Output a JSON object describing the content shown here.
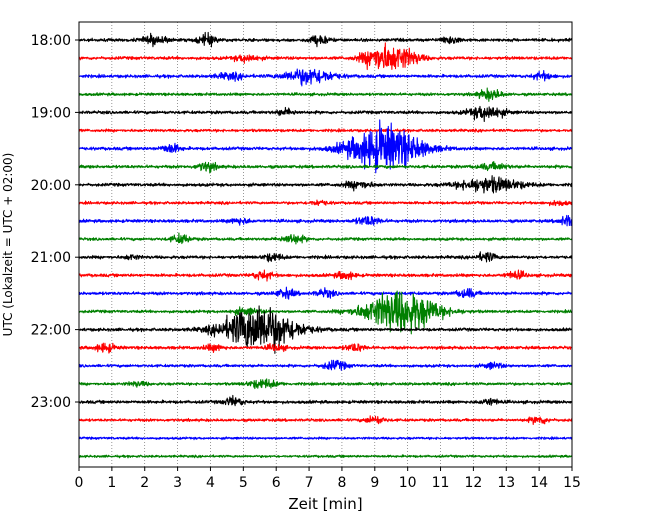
{
  "chart_data": {
    "type": "line",
    "subtype": "helicorder",
    "xlabel": "Zeit  [min]",
    "ylabel": "UTC (Lokalzeit = UTC + 02:00)",
    "xlim": [
      0,
      15
    ],
    "x_ticks": [
      "0",
      "1",
      "2",
      "3",
      "4",
      "5",
      "6",
      "7",
      "8",
      "9",
      "10",
      "11",
      "12",
      "13",
      "14",
      "15"
    ],
    "grid": "vertical-dotted",
    "row_interval_minutes": 15,
    "color_cycle": [
      "#000000",
      "#ff0000",
      "#0000ff",
      "#008000"
    ],
    "y_ticks": [
      {
        "label": "18:00",
        "row": 0
      },
      {
        "label": "19:00",
        "row": 4
      },
      {
        "label": "20:00",
        "row": 8
      },
      {
        "label": "21:00",
        "row": 12
      },
      {
        "label": "22:00",
        "row": 16
      },
      {
        "label": "23:00",
        "row": 20
      }
    ],
    "rows": [
      {
        "start": "18:00",
        "color": "#000000",
        "noise": 2.0,
        "events": [
          {
            "t": 2.3,
            "amp": 6,
            "w": 0.25
          },
          {
            "t": 3.9,
            "amp": 7,
            "w": 0.2
          },
          {
            "t": 7.3,
            "amp": 6,
            "w": 0.2
          },
          {
            "t": 11.3,
            "amp": 5,
            "w": 0.2
          }
        ]
      },
      {
        "start": "18:15",
        "color": "#ff0000",
        "noise": 2.0,
        "events": [
          {
            "t": 5.1,
            "amp": 5,
            "w": 0.25
          },
          {
            "t": 9.1,
            "amp": 15,
            "w": 0.35
          },
          {
            "t": 9.8,
            "amp": 13,
            "w": 0.4
          }
        ]
      },
      {
        "start": "18:30",
        "color": "#0000ff",
        "noise": 2.0,
        "events": [
          {
            "t": 4.6,
            "amp": 4,
            "w": 0.3
          },
          {
            "t": 7.0,
            "amp": 11,
            "w": 0.5
          },
          {
            "t": 14.1,
            "amp": 5,
            "w": 0.2
          }
        ]
      },
      {
        "start": "18:45",
        "color": "#008000",
        "noise": 1.8,
        "events": [
          {
            "t": 12.5,
            "amp": 7,
            "w": 0.25
          }
        ]
      },
      {
        "start": "19:00",
        "color": "#000000",
        "noise": 2.0,
        "events": [
          {
            "t": 6.3,
            "amp": 4,
            "w": 0.2
          },
          {
            "t": 12.4,
            "amp": 10,
            "w": 0.35
          }
        ]
      },
      {
        "start": "19:15",
        "color": "#ff0000",
        "noise": 1.8,
        "events": []
      },
      {
        "start": "19:30",
        "color": "#0000ff",
        "noise": 2.0,
        "events": [
          {
            "t": 2.8,
            "amp": 6,
            "w": 0.2
          },
          {
            "t": 9.3,
            "amp": 32,
            "w": 0.75
          }
        ]
      },
      {
        "start": "19:45",
        "color": "#008000",
        "noise": 2.0,
        "events": [
          {
            "t": 3.9,
            "amp": 6,
            "w": 0.2
          },
          {
            "t": 12.6,
            "amp": 4,
            "w": 0.3
          }
        ]
      },
      {
        "start": "20:00",
        "color": "#000000",
        "noise": 2.0,
        "events": [
          {
            "t": 8.5,
            "amp": 5,
            "w": 0.3
          },
          {
            "t": 12.5,
            "amp": 10,
            "w": 0.65
          }
        ]
      },
      {
        "start": "20:15",
        "color": "#ff0000",
        "noise": 1.8,
        "events": [
          {
            "t": 7.3,
            "amp": 3,
            "w": 0.2
          },
          {
            "t": 14.6,
            "amp": 3,
            "w": 0.2
          }
        ]
      },
      {
        "start": "20:30",
        "color": "#0000ff",
        "noise": 2.0,
        "events": [
          {
            "t": 4.9,
            "amp": 4,
            "w": 0.2
          },
          {
            "t": 8.8,
            "amp": 6,
            "w": 0.25
          },
          {
            "t": 14.9,
            "amp": 7,
            "w": 0.2
          }
        ]
      },
      {
        "start": "20:45",
        "color": "#008000",
        "noise": 1.8,
        "events": [
          {
            "t": 3.1,
            "amp": 6,
            "w": 0.2
          },
          {
            "t": 6.5,
            "amp": 6,
            "w": 0.25
          }
        ]
      },
      {
        "start": "21:00",
        "color": "#000000",
        "noise": 2.0,
        "events": [
          {
            "t": 1.6,
            "amp": 3,
            "w": 0.15
          },
          {
            "t": 5.9,
            "amp": 5,
            "w": 0.2
          },
          {
            "t": 12.4,
            "amp": 6,
            "w": 0.2
          }
        ]
      },
      {
        "start": "21:15",
        "color": "#ff0000",
        "noise": 2.0,
        "events": [
          {
            "t": 5.6,
            "amp": 6,
            "w": 0.2
          },
          {
            "t": 8.1,
            "amp": 5,
            "w": 0.2
          },
          {
            "t": 13.3,
            "amp": 5,
            "w": 0.2
          }
        ]
      },
      {
        "start": "21:30",
        "color": "#0000ff",
        "noise": 2.0,
        "events": [
          {
            "t": 6.3,
            "amp": 6,
            "w": 0.2
          },
          {
            "t": 7.5,
            "amp": 5,
            "w": 0.2
          },
          {
            "t": 11.8,
            "amp": 6,
            "w": 0.2
          }
        ]
      },
      {
        "start": "21:45",
        "color": "#008000",
        "noise": 1.8,
        "events": [
          {
            "t": 5.1,
            "amp": 4,
            "w": 0.3
          },
          {
            "t": 9.8,
            "amp": 30,
            "w": 0.75
          }
        ]
      },
      {
        "start": "22:00",
        "color": "#000000",
        "noise": 2.0,
        "events": [
          {
            "t": 5.5,
            "amp": 33,
            "w": 0.75
          }
        ]
      },
      {
        "start": "22:15",
        "color": "#ff0000",
        "noise": 2.0,
        "events": [
          {
            "t": 0.8,
            "amp": 6,
            "w": 0.2
          },
          {
            "t": 4.1,
            "amp": 4,
            "w": 0.2
          },
          {
            "t": 6.0,
            "amp": 4,
            "w": 0.2
          },
          {
            "t": 8.4,
            "amp": 5,
            "w": 0.2
          }
        ]
      },
      {
        "start": "22:30",
        "color": "#0000ff",
        "noise": 1.8,
        "events": [
          {
            "t": 7.8,
            "amp": 6,
            "w": 0.25
          },
          {
            "t": 12.6,
            "amp": 4,
            "w": 0.2
          }
        ]
      },
      {
        "start": "22:45",
        "color": "#008000",
        "noise": 1.8,
        "events": [
          {
            "t": 1.8,
            "amp": 3,
            "w": 0.2
          },
          {
            "t": 5.6,
            "amp": 6,
            "w": 0.3
          }
        ]
      },
      {
        "start": "23:00",
        "color": "#000000",
        "noise": 2.0,
        "events": [
          {
            "t": 4.7,
            "amp": 6,
            "w": 0.2
          },
          {
            "t": 12.5,
            "amp": 4,
            "w": 0.2
          }
        ]
      },
      {
        "start": "23:15",
        "color": "#ff0000",
        "noise": 1.8,
        "events": [
          {
            "t": 9.0,
            "amp": 5,
            "w": 0.2
          },
          {
            "t": 14.0,
            "amp": 5,
            "w": 0.2
          }
        ]
      },
      {
        "start": "23:30",
        "color": "#0000ff",
        "noise": 1.5,
        "events": []
      },
      {
        "start": "23:45",
        "color": "#008000",
        "noise": 1.5,
        "events": []
      }
    ]
  }
}
